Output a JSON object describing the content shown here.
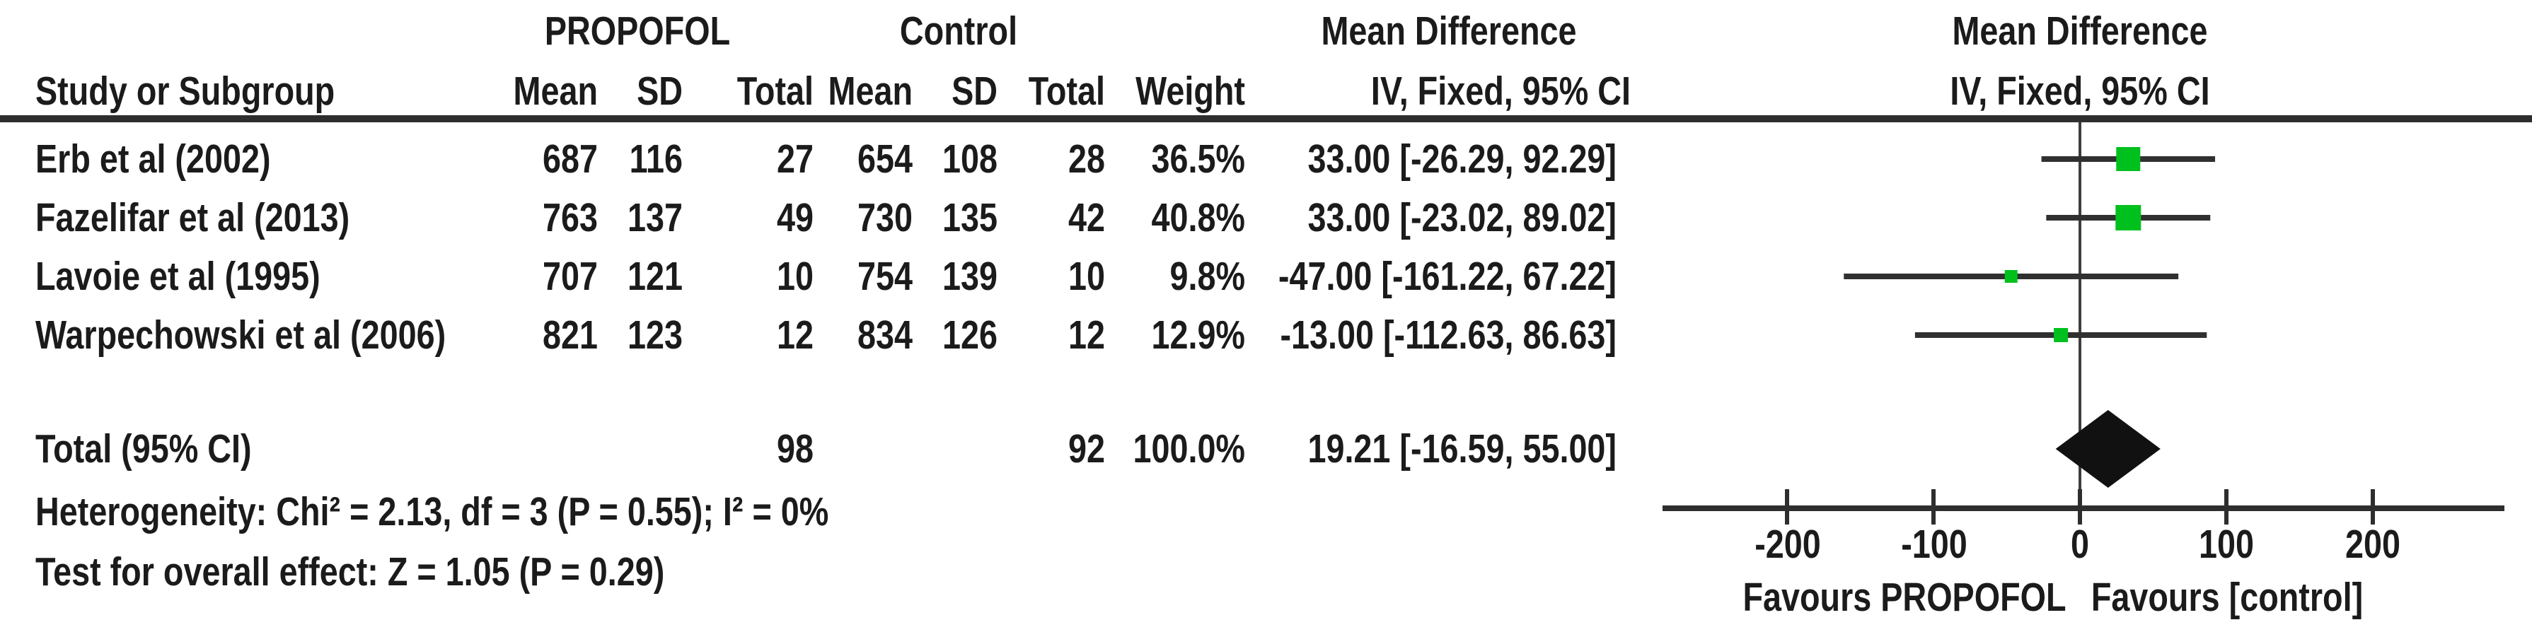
{
  "chart_data": {
    "type": "forest_plot",
    "title": "",
    "group1": "PROPOFOL",
    "group2": "Control",
    "effect_measure": "Mean Difference",
    "method": "IV, Fixed, 95% CI",
    "columns": {
      "study": "Study or Subgroup",
      "mean": "Mean",
      "sd": "SD",
      "total": "Total",
      "weight": "Weight",
      "ci": "IV, Fixed, 95% CI"
    },
    "studies": [
      {
        "study": "Erb et al (2002)",
        "mean1": "687",
        "sd1": "116",
        "total1": "27",
        "mean2": "654",
        "sd2": "108",
        "total2": "28",
        "weight": "36.5%",
        "weight_pct": 36.5,
        "effect": 33.0,
        "ci_low": -26.29,
        "ci_high": 92.29,
        "ci_text": "33.00 [-26.29, 92.29]"
      },
      {
        "study": "Fazelifar et al (2013)",
        "mean1": "763",
        "sd1": "137",
        "total1": "49",
        "mean2": "730",
        "sd2": "135",
        "total2": "42",
        "weight": "40.8%",
        "weight_pct": 40.8,
        "effect": 33.0,
        "ci_low": -23.02,
        "ci_high": 89.02,
        "ci_text": "33.00 [-23.02, 89.02]"
      },
      {
        "study": "Lavoie et al (1995)",
        "mean1": "707",
        "sd1": "121",
        "total1": "10",
        "mean2": "754",
        "sd2": "139",
        "total2": "10",
        "weight": "9.8%",
        "weight_pct": 9.8,
        "effect": -47.0,
        "ci_low": -161.22,
        "ci_high": 67.22,
        "ci_text": "-47.00 [-161.22, 67.22]"
      },
      {
        "study": "Warpechowski et al (2006)",
        "mean1": "821",
        "sd1": "123",
        "total1": "12",
        "mean2": "834",
        "sd2": "126",
        "total2": "12",
        "weight": "12.9%",
        "weight_pct": 12.9,
        "effect": -13.0,
        "ci_low": -112.63,
        "ci_high": 86.63,
        "ci_text": "-13.00 [-112.63, 86.63]"
      }
    ],
    "total": {
      "label": "Total (95% CI)",
      "total1": "98",
      "total2": "92",
      "weight": "100.0%",
      "effect": 19.21,
      "ci_low": -16.59,
      "ci_high": 55.0,
      "ci_text": "19.21 [-16.59, 55.00]"
    },
    "heterogeneity": "Heterogeneity: Chi² = 2.13, df = 3 (P = 0.55); I² = 0%",
    "overall_effect": "Test for overall effect: Z = 1.05 (P = 0.29)",
    "axis": {
      "ticks": [
        -200,
        -100,
        0,
        100,
        200
      ],
      "tick_labels": [
        "-200",
        "-100",
        "0",
        "100",
        "200"
      ],
      "xlim": [
        -285,
        290
      ],
      "favours_left": "Favours PROPOFOL",
      "favours_right": "Favours [control]"
    },
    "colors": {
      "square": "#00c01e",
      "diamond": "#111111",
      "line": "#303030",
      "axis": "#2e2e2e"
    }
  }
}
